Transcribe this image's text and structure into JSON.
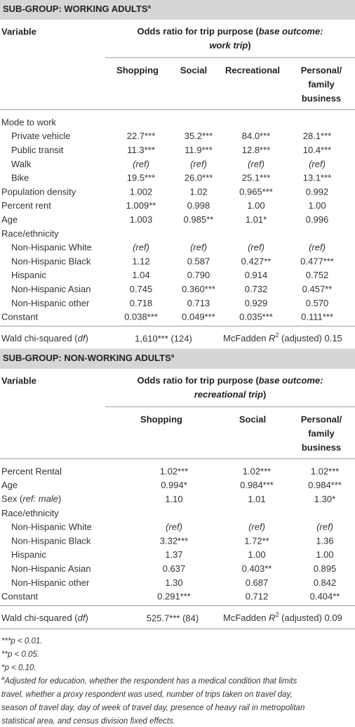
{
  "sections": [
    {
      "title": "SUB-GROUP: WORKING ADULTS",
      "title_note": "a",
      "variable_header": "Variable",
      "group_header": [
        [
          {
            "text": "Odds ratio for trip purpose ("
          },
          {
            "text": "base outcome:",
            "italic": true
          }
        ],
        [
          {
            "text": "work trip",
            "italic": true
          },
          {
            "text": ")"
          }
        ]
      ],
      "columns": [
        [
          "Shopping"
        ],
        [
          "Social"
        ],
        [
          "Recreational"
        ],
        [
          "Personal/",
          "family",
          "business"
        ]
      ],
      "rows": [
        {
          "label": "Mode to work"
        },
        {
          "label": "Private vehicle",
          "indent": true,
          "cells": [
            "22.7***",
            "35.2***",
            "84.0***",
            "28.1***"
          ]
        },
        {
          "label": "Public transit",
          "indent": true,
          "cells": [
            "11.3***",
            "11.9***",
            "12.8***",
            "10.4***"
          ]
        },
        {
          "label": "Walk",
          "indent": true,
          "cells": [
            "(ref)",
            "(ref)",
            "(ref)",
            "(ref)"
          ]
        },
        {
          "label": "Bike",
          "indent": true,
          "cells": [
            "19.5***",
            "26.0***",
            "25.1***",
            "13.1***"
          ]
        },
        {
          "label": "Population density",
          "cells": [
            "1.002",
            "1.02",
            "0.965***",
            "0.992"
          ]
        },
        {
          "label": "Percent rent",
          "cells": [
            "1.009**",
            "0.998",
            "1.00",
            "1.00"
          ]
        },
        {
          "label": "Age",
          "cells": [
            "1.003",
            "0.985**",
            "1.01*",
            "0.996"
          ]
        },
        {
          "label": "Race/ethnicity"
        },
        {
          "label": "Non-Hispanic White",
          "indent": true,
          "cells": [
            "(ref)",
            "(ref)",
            "(ref)",
            "(ref)"
          ]
        },
        {
          "label": "Non-Hispanic Black",
          "indent": true,
          "cells": [
            "1.12",
            "0.587",
            "0.427**",
            "0.477***"
          ]
        },
        {
          "label": "Hispanic",
          "indent": true,
          "cells": [
            "1.04",
            "0.790",
            "0.914",
            "0.752"
          ]
        },
        {
          "label": "Non-Hispanic Asian",
          "indent": true,
          "cells": [
            "0.745",
            "0.360***",
            "0.732",
            "0.457**"
          ]
        },
        {
          "label": "Non-Hispanic other",
          "indent": true,
          "cells": [
            "0.718",
            "0.713",
            "0.929",
            "0.570"
          ]
        },
        {
          "label": "Constant",
          "cells": [
            "0.038***",
            "0.049***",
            "0.035***",
            "0.111***"
          ]
        }
      ],
      "wald_label": [
        {
          "text": "Wald chi-squared ("
        },
        {
          "text": "df",
          "italic": true
        },
        {
          "text": ")"
        }
      ],
      "wald_value": "1,610*** (124)",
      "mcfadden": [
        {
          "text": "McFadden "
        },
        {
          "text": "R",
          "italic": true
        },
        {
          "text": "2",
          "sup": true
        },
        {
          "text": " (adjusted) 0.15"
        }
      ]
    },
    {
      "title": "SUB-GROUP: NON-WORKING ADULTS",
      "title_note": "a",
      "variable_header": "Variable",
      "group_header": [
        [
          {
            "text": "Odds ratio for trip purpose ("
          },
          {
            "text": "base outcome:",
            "italic": true
          }
        ],
        [
          {
            "text": "recreational trip",
            "italic": true
          },
          {
            "text": ")"
          }
        ]
      ],
      "columns": [
        [
          "Shopping"
        ],
        [
          "Social"
        ],
        [
          "Personal/",
          "family",
          "business"
        ]
      ],
      "rows": [
        {
          "label": "Percent Rental",
          "cells": [
            "1.02***",
            "1.02***",
            "1.02***"
          ]
        },
        {
          "label": "Age",
          "cells": [
            "0.994*",
            "0.984***",
            "0.984***"
          ]
        },
        {
          "label": [
            {
              "text": "Sex ("
            },
            {
              "text": "ref: male",
              "italic": true
            },
            {
              "text": ")"
            }
          ],
          "cells": [
            "1.10",
            "1.01",
            "1.30*"
          ]
        },
        {
          "label": "Race/ethnicity"
        },
        {
          "label": "Non-Hispanic White",
          "indent": true,
          "cells": [
            "(ref)",
            "(ref)",
            "(ref)"
          ]
        },
        {
          "label": "Non-Hispanic Black",
          "indent": true,
          "cells": [
            "3.32***",
            "1.72**",
            "1.36"
          ]
        },
        {
          "label": "Hispanic",
          "indent": true,
          "cells": [
            "1.37",
            "1.00",
            "1.00"
          ]
        },
        {
          "label": "Non-Hispanic Asian",
          "indent": true,
          "cells": [
            "0.637",
            "0.403**",
            "0.895"
          ]
        },
        {
          "label": "Non-Hispanic other",
          "indent": true,
          "cells": [
            "1.30",
            "0.687",
            "0.842"
          ]
        },
        {
          "label": "Constant",
          "cells": [
            "0.291***",
            "0.712",
            "0.404**"
          ]
        }
      ],
      "wald_label": [
        {
          "text": "Wald chi-squared ("
        },
        {
          "text": "df",
          "italic": true
        },
        {
          "text": ")"
        }
      ],
      "wald_value": "525.7*** (84)",
      "mcfadden": [
        {
          "text": "McFadden "
        },
        {
          "text": "R",
          "italic": true
        },
        {
          "text": "2",
          "sup": true
        },
        {
          "text": " (adjusted) 0.09"
        }
      ]
    }
  ],
  "footnotes": [
    "***p < 0.01.",
    "**p < 0.05.",
    "*p < 0.10."
  ],
  "note_mark": "a",
  "note_lines": [
    "Adjusted for education, whether the respondent has a medical condition that limits",
    "travel, whether a proxy respondent was used, number of trips taken on travel day,",
    "season of travel day, day of week of travel day, presence of heavy rail in metropolitan",
    "statistical area, and census division fixed effects."
  ]
}
